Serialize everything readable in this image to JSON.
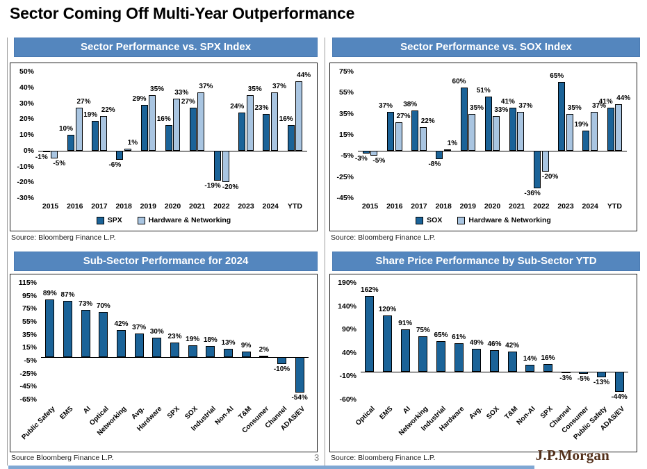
{
  "page": {
    "title": "Sector Coming Off Multi-Year Outperformance",
    "page_number": "3",
    "logo": "J.P.Morgan"
  },
  "colors": {
    "header_blue": "#5486BE",
    "bar_dark": "#1B6398",
    "bar_light": "#A9C5E1",
    "logo_brown": "#53301B"
  },
  "panels": [
    {
      "header": "Sector Performance vs. SPX Index",
      "source": "Source: Bloomberg Finance L.P."
    },
    {
      "header": "Sector Performance vs. SOX Index",
      "source": "Source: Bloomberg Finance L.P."
    },
    {
      "header": "Sub-Sector Performance for 2024",
      "source": "Source Bloomberg Finance L.P."
    },
    {
      "header": "Share Price Performance by Sub-Sector YTD",
      "source": "Source: Bloomberg Finance L.P."
    }
  ],
  "chart_data": [
    {
      "type": "bar",
      "title": "Sector Performance vs. SPX Index",
      "categories": [
        "2015",
        "2016",
        "2017",
        "2018",
        "2019",
        "2020",
        "2021",
        "2022",
        "2023",
        "2024",
        "YTD"
      ],
      "series": [
        {
          "name": "SPX",
          "color": "#1B6398",
          "values": [
            -1,
            10,
            19,
            -6,
            29,
            16,
            27,
            -19,
            24,
            23,
            16
          ]
        },
        {
          "name": "Hardware & Networking",
          "color": "#A9C5E1",
          "values": [
            -5,
            27,
            22,
            1,
            35,
            33,
            37,
            -20,
            35,
            37,
            44
          ]
        }
      ],
      "ylim": [
        -30,
        50
      ],
      "yticks": [
        50,
        40,
        30,
        20,
        10,
        0,
        -10,
        -20,
        -30
      ],
      "grid": false,
      "legend": true,
      "legend_position": "bottom"
    },
    {
      "type": "bar",
      "title": "Sector Performance vs. SOX Index",
      "categories": [
        "2015",
        "2016",
        "2017",
        "2018",
        "2019",
        "2020",
        "2021",
        "2022",
        "2023",
        "2024",
        "YTD"
      ],
      "series": [
        {
          "name": "SOX",
          "color": "#1B6398",
          "values": [
            -3,
            37,
            38,
            -8,
            60,
            51,
            41,
            -36,
            65,
            19,
            41
          ]
        },
        {
          "name": "Hardware & Networking",
          "color": "#A9C5E1",
          "values": [
            -5,
            27,
            22,
            1,
            35,
            33,
            37,
            -20,
            35,
            37,
            44
          ]
        }
      ],
      "ylim": [
        -45,
        75
      ],
      "yticks": [
        75,
        55,
        35,
        15,
        -5,
        -25,
        -45
      ],
      "grid": false,
      "legend": true,
      "legend_position": "bottom"
    },
    {
      "type": "bar",
      "title": "Sub-Sector Performance for 2024",
      "categories": [
        "Public Safety",
        "EMS",
        "AI",
        "Optical",
        "Networking",
        "Avg.",
        "Hardware",
        "SPX",
        "SOX",
        "Industrial",
        "Non-AI",
        "T&M",
        "Consumer",
        "Channel",
        "ADAS/EV"
      ],
      "series": [
        {
          "name": "Sub-Sector 2024",
          "color": "#1B6398",
          "values": [
            89,
            87,
            73,
            70,
            42,
            37,
            30,
            23,
            19,
            18,
            13,
            9,
            2,
            -10,
            -54
          ]
        }
      ],
      "ylim": [
        -65,
        115
      ],
      "yticks": [
        115,
        95,
        75,
        55,
        35,
        15,
        -5,
        -25,
        -45,
        -65
      ],
      "grid": false,
      "legend": false
    },
    {
      "type": "bar",
      "title": "Share Price Performance by Sub-Sector YTD",
      "categories": [
        "Optical",
        "EMS",
        "AI",
        "Networking",
        "Industrial",
        "Hardware",
        "Avg.",
        "SOX",
        "T&M",
        "Non-AI",
        "SPX",
        "Channel",
        "Consumer",
        "Public Safety",
        "ADAS/EV"
      ],
      "series": [
        {
          "name": "Sub-Sector YTD",
          "color": "#1B6398",
          "values": [
            162,
            120,
            91,
            75,
            65,
            61,
            49,
            46,
            42,
            14,
            16,
            -3,
            -5,
            -13,
            -44
          ]
        }
      ],
      "ylim": [
        -60,
        190
      ],
      "yticks": [
        190,
        140,
        90,
        40,
        -10,
        -60
      ],
      "grid": false,
      "legend": false
    }
  ]
}
